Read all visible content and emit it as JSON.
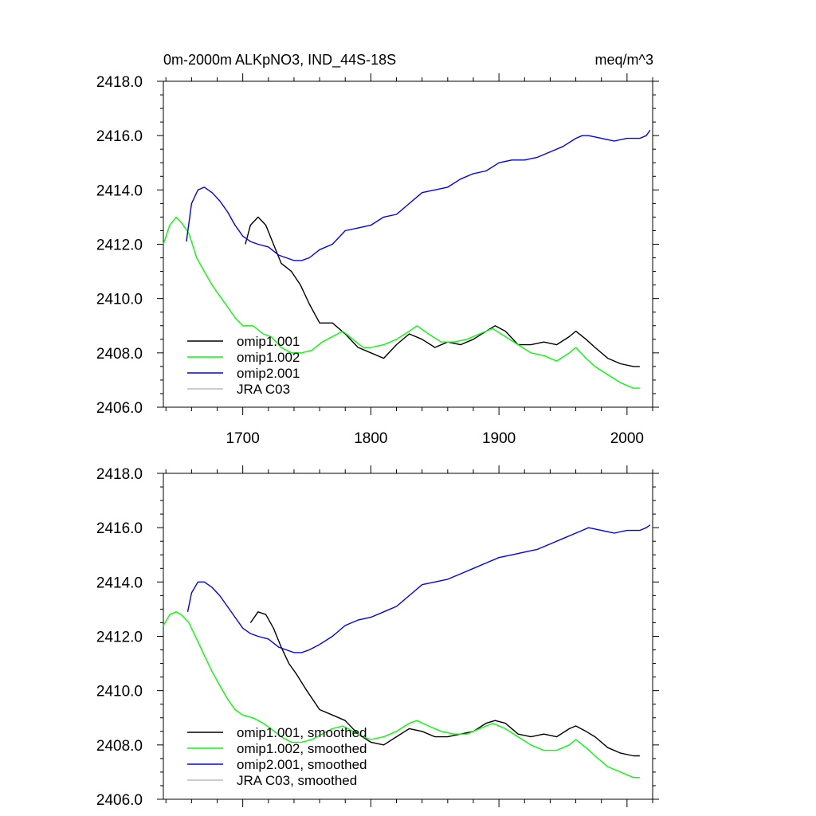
{
  "chart_data": [
    {
      "type": "line",
      "title": "0m-2000m ALKpNO3, IND_44S-18S",
      "units": "meq/m^3",
      "xlim": [
        1638,
        2020
      ],
      "ylim": [
        2406,
        2418
      ],
      "x_ticks": [
        1700,
        1800,
        1900,
        2000
      ],
      "x_tick_labels": [
        "1700",
        "1800",
        "1900",
        "2000"
      ],
      "y_ticks": [
        2406,
        2408,
        2410,
        2412,
        2414,
        2416,
        2418
      ],
      "y_tick_labels": [
        "2406.0",
        "2408.0",
        "2410.0",
        "2412.0",
        "2414.0",
        "2416.0",
        "2418.0"
      ],
      "legend_position": "bottom-left",
      "series": [
        {
          "name": "omip1.001",
          "color": "#000000",
          "x": [
            1702,
            1706,
            1712,
            1718,
            1724,
            1730,
            1738,
            1745,
            1752,
            1760,
            1770,
            1780,
            1790,
            1800,
            1810,
            1820,
            1830,
            1840,
            1850,
            1860,
            1870,
            1880,
            1890,
            1897,
            1905,
            1915,
            1925,
            1935,
            1945,
            1955,
            1960,
            1968,
            1975,
            1985,
            1995,
            2005,
            2010
          ],
          "y": [
            2412.0,
            2412.7,
            2413.0,
            2412.7,
            2412.0,
            2411.3,
            2411.0,
            2410.5,
            2409.8,
            2409.1,
            2409.1,
            2408.7,
            2408.2,
            2408.0,
            2407.8,
            2408.3,
            2408.7,
            2408.5,
            2408.2,
            2408.4,
            2408.3,
            2408.5,
            2408.8,
            2409.0,
            2408.8,
            2408.3,
            2408.3,
            2408.4,
            2408.3,
            2408.6,
            2408.8,
            2408.5,
            2408.2,
            2407.8,
            2407.6,
            2407.5,
            2407.5
          ]
        },
        {
          "name": "omip1.002",
          "color": "#00ff00",
          "x": [
            1638,
            1643,
            1648,
            1652,
            1658,
            1664,
            1670,
            1676,
            1682,
            1688,
            1694,
            1700,
            1708,
            1716,
            1722,
            1730,
            1738,
            1746,
            1754,
            1762,
            1770,
            1778,
            1786,
            1794,
            1800,
            1810,
            1820,
            1830,
            1836,
            1845,
            1855,
            1865,
            1875,
            1885,
            1895,
            1905,
            1915,
            1925,
            1935,
            1945,
            1955,
            1960,
            1968,
            1975,
            1985,
            1995,
            2005,
            2010
          ],
          "y": [
            2412.0,
            2412.7,
            2413.0,
            2412.8,
            2412.4,
            2411.5,
            2411.0,
            2410.5,
            2410.1,
            2409.7,
            2409.3,
            2409.0,
            2409.0,
            2408.7,
            2408.6,
            2408.2,
            2408.0,
            2408.0,
            2408.1,
            2408.4,
            2408.6,
            2408.8,
            2408.5,
            2408.2,
            2408.2,
            2408.3,
            2408.5,
            2408.8,
            2409.0,
            2408.7,
            2408.4,
            2408.4,
            2408.5,
            2408.7,
            2408.9,
            2408.6,
            2408.3,
            2408.0,
            2407.9,
            2407.7,
            2408.0,
            2408.2,
            2407.8,
            2407.5,
            2407.2,
            2406.9,
            2406.7,
            2406.7
          ]
        },
        {
          "name": "omip2.001",
          "color": "#0000ff",
          "x": [
            1656,
            1660,
            1665,
            1670,
            1676,
            1682,
            1688,
            1694,
            1700,
            1706,
            1712,
            1720,
            1728,
            1734,
            1740,
            1746,
            1752,
            1760,
            1770,
            1780,
            1790,
            1800,
            1810,
            1820,
            1830,
            1840,
            1850,
            1860,
            1870,
            1880,
            1890,
            1900,
            1910,
            1920,
            1930,
            1940,
            1950,
            1960,
            1965,
            1970,
            1980,
            1990,
            2000,
            2010,
            2015,
            2018
          ],
          "y": [
            2412.1,
            2413.5,
            2414.0,
            2414.1,
            2413.9,
            2413.6,
            2413.2,
            2412.7,
            2412.3,
            2412.1,
            2412.0,
            2411.9,
            2411.6,
            2411.5,
            2411.4,
            2411.4,
            2411.5,
            2411.8,
            2412.0,
            2412.5,
            2412.6,
            2412.7,
            2413.0,
            2413.1,
            2413.5,
            2413.9,
            2414.0,
            2414.1,
            2414.4,
            2414.6,
            2414.7,
            2415.0,
            2415.1,
            2415.1,
            2415.2,
            2415.4,
            2415.6,
            2415.9,
            2416.0,
            2416.0,
            2415.9,
            2415.8,
            2415.9,
            2415.9,
            2416.0,
            2416.2
          ]
        },
        {
          "name": "JRA C03",
          "color": "#bbbbbb",
          "x": [],
          "y": []
        }
      ]
    },
    {
      "type": "line",
      "title": "",
      "units": "",
      "xlim": [
        1638,
        2020
      ],
      "ylim": [
        2406,
        2418
      ],
      "x_ticks": [
        1700,
        1800,
        1900,
        2000
      ],
      "x_tick_labels": [],
      "y_ticks": [
        2406,
        2408,
        2410,
        2412,
        2414,
        2416,
        2418
      ],
      "y_tick_labels": [
        "2406.0",
        "2408.0",
        "2410.0",
        "2412.0",
        "2414.0",
        "2416.0",
        "2418.0"
      ],
      "legend_position": "bottom-left",
      "series": [
        {
          "name": "omip1.001, smoothed",
          "color": "#000000",
          "x": [
            1706,
            1712,
            1718,
            1724,
            1730,
            1736,
            1742,
            1750,
            1760,
            1770,
            1780,
            1790,
            1800,
            1810,
            1820,
            1830,
            1840,
            1850,
            1860,
            1870,
            1880,
            1890,
            1897,
            1905,
            1915,
            1925,
            1935,
            1945,
            1955,
            1960,
            1968,
            1975,
            1985,
            1995,
            2005,
            2010
          ],
          "y": [
            2412.5,
            2412.9,
            2412.8,
            2412.3,
            2411.6,
            2411.0,
            2410.6,
            2410.0,
            2409.3,
            2409.1,
            2408.9,
            2408.4,
            2408.1,
            2408.0,
            2408.3,
            2408.6,
            2408.5,
            2408.3,
            2408.3,
            2408.4,
            2408.5,
            2408.8,
            2408.9,
            2408.8,
            2408.4,
            2408.3,
            2408.4,
            2408.3,
            2408.6,
            2408.7,
            2408.5,
            2408.3,
            2407.9,
            2407.7,
            2407.6,
            2407.6
          ]
        },
        {
          "name": "omip1.002, smoothed",
          "color": "#00ff00",
          "x": [
            1638,
            1643,
            1648,
            1652,
            1658,
            1664,
            1670,
            1676,
            1682,
            1688,
            1694,
            1700,
            1708,
            1716,
            1722,
            1730,
            1738,
            1746,
            1754,
            1762,
            1770,
            1778,
            1786,
            1794,
            1800,
            1810,
            1820,
            1830,
            1836,
            1845,
            1855,
            1865,
            1875,
            1885,
            1895,
            1905,
            1915,
            1925,
            1935,
            1945,
            1955,
            1960,
            1968,
            1975,
            1985,
            1995,
            2005,
            2010
          ],
          "y": [
            2412.4,
            2412.8,
            2412.9,
            2412.8,
            2412.5,
            2411.9,
            2411.3,
            2410.7,
            2410.2,
            2409.7,
            2409.3,
            2409.1,
            2409.0,
            2408.8,
            2408.6,
            2408.3,
            2408.1,
            2408.1,
            2408.2,
            2408.4,
            2408.6,
            2408.7,
            2408.5,
            2408.3,
            2408.2,
            2408.3,
            2408.5,
            2408.8,
            2408.9,
            2408.7,
            2408.5,
            2408.4,
            2408.4,
            2408.6,
            2408.8,
            2408.6,
            2408.3,
            2408.0,
            2407.8,
            2407.8,
            2408.0,
            2408.2,
            2407.9,
            2407.6,
            2407.2,
            2407.0,
            2406.8,
            2406.8
          ]
        },
        {
          "name": "omip2.001, smoothed",
          "color": "#0000ff",
          "x": [
            1657,
            1660,
            1665,
            1670,
            1676,
            1682,
            1688,
            1694,
            1700,
            1706,
            1712,
            1720,
            1728,
            1734,
            1740,
            1746,
            1752,
            1760,
            1770,
            1780,
            1790,
            1800,
            1810,
            1820,
            1830,
            1840,
            1850,
            1860,
            1870,
            1880,
            1890,
            1900,
            1910,
            1920,
            1930,
            1940,
            1950,
            1960,
            1965,
            1970,
            1980,
            1990,
            2000,
            2010,
            2015,
            2018
          ],
          "y": [
            2412.9,
            2413.6,
            2414.0,
            2414.0,
            2413.8,
            2413.5,
            2413.1,
            2412.7,
            2412.3,
            2412.1,
            2412.0,
            2411.9,
            2411.6,
            2411.5,
            2411.4,
            2411.4,
            2411.5,
            2411.7,
            2412.0,
            2412.4,
            2412.6,
            2412.7,
            2412.9,
            2413.1,
            2413.5,
            2413.9,
            2414.0,
            2414.1,
            2414.3,
            2414.5,
            2414.7,
            2414.9,
            2415.0,
            2415.1,
            2415.2,
            2415.4,
            2415.6,
            2415.8,
            2415.9,
            2416.0,
            2415.9,
            2415.8,
            2415.9,
            2415.9,
            2416.0,
            2416.1
          ]
        },
        {
          "name": "JRA C03, smoothed",
          "color": "#bbbbbb",
          "x": [],
          "y": []
        }
      ]
    }
  ]
}
